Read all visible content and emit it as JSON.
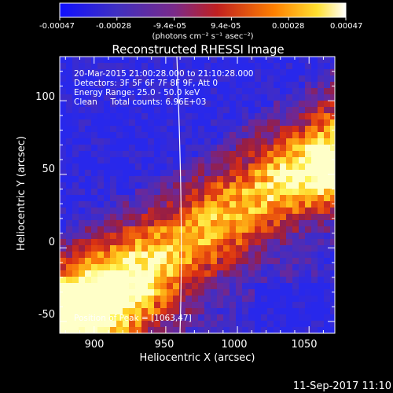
{
  "chart_data": {
    "type": "heatmap",
    "title": "Reconstructed RHESSI Image",
    "xlabel": "Heliocentric X (arcsec)",
    "ylabel": "Heliocentric Y (arcsec)",
    "xlim": [
      876,
      1068
    ],
    "ylim": [
      -58,
      130
    ],
    "xticks": [
      "900",
      "950",
      "1000",
      "1050"
    ],
    "xtick_values": [
      900,
      950,
      1000,
      1050
    ],
    "yticks": [
      "-50",
      "0",
      "50",
      "100"
    ],
    "ytick_values": [
      -50,
      0,
      50,
      100
    ],
    "colorbar": {
      "ticks": [
        "-0.00047",
        "-0.00028",
        "-9.4e-05",
        "9.4e-05",
        "0.00028",
        "0.00047"
      ],
      "range": [
        -0.00047,
        0.00047
      ],
      "unit_label": "(photons cm⁻² s⁻¹ asec⁻²)",
      "colormap": "blue-purple-red-orange-yellow-white"
    },
    "annotations": [
      "20-Mar-2015 21:00:28.000 to 21:10:28.000",
      "Detectors: 3F 5F 6F 7F 8F 9F, Att 0",
      "Energy Range: 25.0 - 50.0 keV",
      "Clean     Total counts: 6.96E+03"
    ],
    "peak_label": "Position of Peak = [1063,47]",
    "peak": [
      1063,
      47
    ],
    "limb_visible": true,
    "footer": "11-Sep-2017 11:10"
  },
  "colors": {
    "background": "#000000",
    "foreground": "#ffffff",
    "low": "#2030e0",
    "mid": "#7a2a9a",
    "high": "#ffd020",
    "peak": "#ffffc0"
  }
}
